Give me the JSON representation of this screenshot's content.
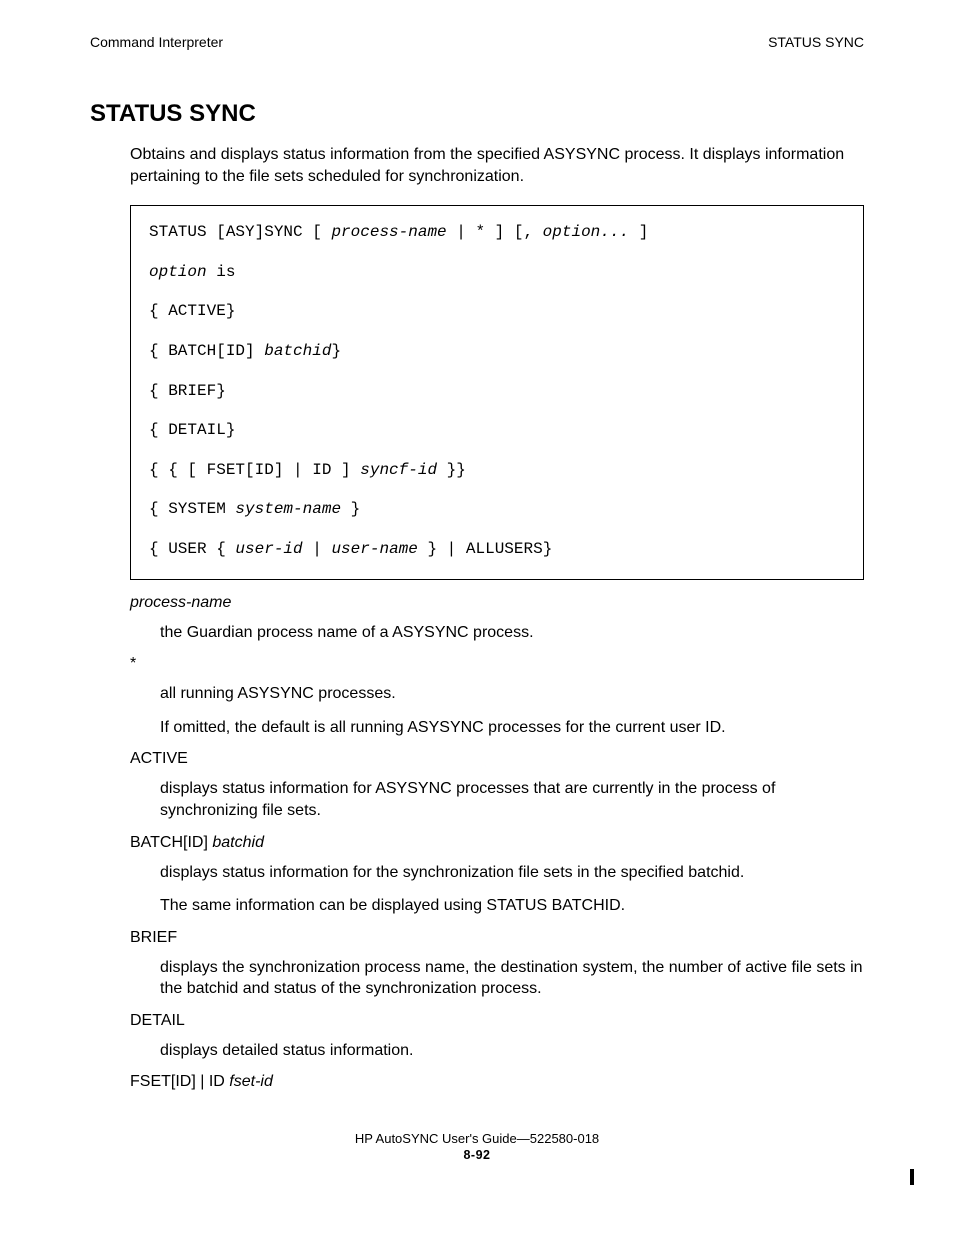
{
  "header": {
    "left": "Command Interpreter",
    "right": "STATUS SYNC"
  },
  "title": "STATUS SYNC",
  "intro": "Obtains and displays status information from the specified ASYSYNC process. It displays information pertaining to the file sets scheduled for synchronization.",
  "syntax": {
    "line1_a": "STATUS [ASY]SYNC [ ",
    "line1_i": "process-name",
    "line1_b": " | * ] [, ",
    "line1_i2": "option...",
    "line1_c": " ]",
    "line2_i": "option",
    "line2_b": " is",
    "line3": "{ ACTIVE}",
    "line4_a": "{ BATCH[ID] ",
    "line4_i": "batchid",
    "line4_b": "}",
    "line5": "{ BRIEF}",
    "line6": "{ DETAIL}",
    "line7_a": "{ { [ FSET[ID] | ID ]  ",
    "line7_i": "syncf-id",
    "line7_b": " }}",
    "line8_a": "{ SYSTEM ",
    "line8_i": "system-name",
    "line8_b": " }",
    "line9_a": "{ USER { ",
    "line9_i1": "user-id",
    "line9_m": " | ",
    "line9_i2": "user-name",
    "line9_b": " } | ALLUSERS}"
  },
  "defs": {
    "t1": "process-name",
    "d1": "the Guardian process name of a ASYSYNC process.",
    "t2": "*",
    "d2a": "all running ASYSYNC processes.",
    "d2b": "If omitted, the default is all running ASYSYNC processes for the current user ID.",
    "t3": "ACTIVE",
    "d3": "displays status information for ASYSYNC processes that are currently in the process of synchronizing file sets.",
    "t4a": "BATCH[ID] ",
    "t4i": "batchid",
    "d4a": "displays status information for the synchronization file sets in the specified batchid.",
    "d4b": "The same information can be displayed using STATUS BATCHID.",
    "t5": "BRIEF",
    "d5": "displays the synchronization process name, the destination system, the number of active file sets in the batchid and status of the synchronization process.",
    "t6": "DETAIL",
    "d6": "displays detailed status information.",
    "t7a": "FSET[ID] | ID ",
    "t7i": "fset-id"
  },
  "footer": {
    "line1": "HP AutoSYNC User's Guide—522580-018",
    "line2": "8-92"
  }
}
